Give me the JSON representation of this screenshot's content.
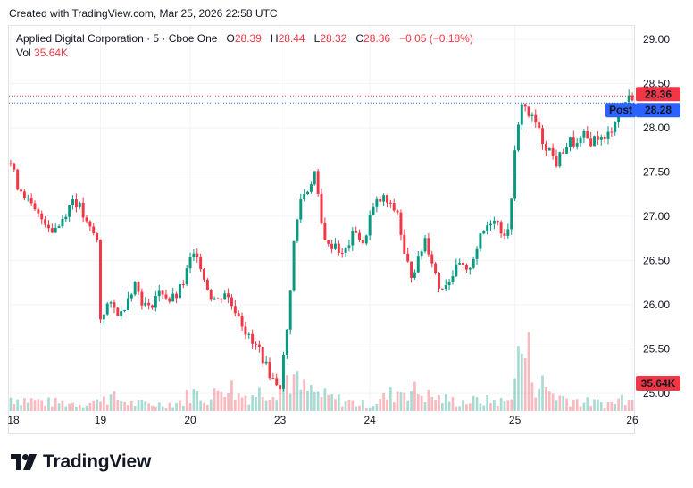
{
  "header": {
    "created": "Created with TradingView.com, Mar 25, 2026 22:58 UTC"
  },
  "legend": {
    "symbol": "Applied Digital Corporation · 5 · Cboe One",
    "o_label": "O",
    "o_value": "28.39",
    "h_label": "H",
    "h_value": "28.44",
    "l_label": "L",
    "l_value": "28.32",
    "c_label": "C",
    "c_value": "28.36",
    "change": "−0.05 (−0.18%)",
    "vol_label": "Vol",
    "vol_value": "35.64K"
  },
  "footer": {
    "brand": "TradingView"
  },
  "colors": {
    "up": "#089981",
    "down": "#f23645",
    "post": "#2962ff",
    "grid": "#f0f3fa"
  },
  "chart_data": {
    "type": "candlestick",
    "ylim": [
      24.8,
      29.15
    ],
    "y_ticks": [
      25.0,
      25.5,
      26.0,
      26.5,
      27.0,
      27.5,
      28.0,
      28.5,
      29.0
    ],
    "y_tick_labels": [
      "25.00",
      "25.50",
      "26.00",
      "26.50",
      "27.00",
      "27.50",
      "28.00",
      "28.50",
      "29.00"
    ],
    "x_tick_labels": [
      "18",
      "19",
      "20",
      "23",
      "24",
      "25",
      "26"
    ],
    "last_price_label": "28.36",
    "post_label": "Post",
    "post_price_label": "28.28",
    "volume_label": "35.64K",
    "price_path": [
      [
        0,
        27.6
      ],
      [
        2,
        27.35
      ],
      [
        4,
        27.25
      ],
      [
        6,
        27.1
      ],
      [
        8,
        27.0
      ],
      [
        10,
        26.95
      ],
      [
        12,
        26.85
      ],
      [
        14,
        26.9
      ],
      [
        16,
        27.05
      ],
      [
        18,
        27.2
      ],
      [
        20,
        27.1
      ],
      [
        22,
        26.9
      ],
      [
        24,
        26.8
      ],
      [
        25,
        26.72
      ],
      [
        26,
        25.85
      ],
      [
        28,
        26.0
      ],
      [
        30,
        25.95
      ],
      [
        32,
        25.9
      ],
      [
        34,
        26.1
      ],
      [
        36,
        26.25
      ],
      [
        38,
        26.05
      ],
      [
        40,
        25.95
      ],
      [
        42,
        26.1
      ],
      [
        44,
        26.15
      ],
      [
        46,
        26.05
      ],
      [
        48,
        26.1
      ],
      [
        50,
        26.25
      ],
      [
        52,
        26.5
      ],
      [
        54,
        26.6
      ],
      [
        56,
        26.3
      ],
      [
        58,
        26.1
      ],
      [
        60,
        26.05
      ],
      [
        62,
        26.15
      ],
      [
        64,
        26.0
      ],
      [
        66,
        25.9
      ],
      [
        68,
        25.7
      ],
      [
        70,
        25.55
      ],
      [
        72,
        25.5
      ],
      [
        74,
        25.3
      ],
      [
        76,
        25.15
      ],
      [
        78,
        25.1
      ],
      [
        80,
        25.7
      ],
      [
        82,
        26.7
      ],
      [
        84,
        27.2
      ],
      [
        86,
        27.3
      ],
      [
        88,
        27.5
      ],
      [
        90,
        26.9
      ],
      [
        92,
        26.65
      ],
      [
        94,
        26.7
      ],
      [
        96,
        26.55
      ],
      [
        98,
        26.7
      ],
      [
        100,
        26.85
      ],
      [
        102,
        26.65
      ],
      [
        104,
        27.0
      ],
      [
        106,
        27.15
      ],
      [
        108,
        27.2
      ],
      [
        110,
        27.1
      ],
      [
        112,
        27.05
      ],
      [
        114,
        26.55
      ],
      [
        116,
        26.35
      ],
      [
        118,
        26.5
      ],
      [
        120,
        26.75
      ],
      [
        122,
        26.5
      ],
      [
        124,
        26.2
      ],
      [
        126,
        26.25
      ],
      [
        128,
        26.35
      ],
      [
        130,
        26.45
      ],
      [
        132,
        26.35
      ],
      [
        134,
        26.55
      ],
      [
        136,
        26.75
      ],
      [
        138,
        26.9
      ],
      [
        140,
        27.0
      ],
      [
        142,
        26.85
      ],
      [
        144,
        26.8
      ],
      [
        146,
        27.7
      ],
      [
        148,
        28.3
      ],
      [
        150,
        28.15
      ],
      [
        152,
        28.05
      ],
      [
        154,
        27.85
      ],
      [
        156,
        27.75
      ],
      [
        158,
        27.6
      ],
      [
        160,
        27.75
      ],
      [
        162,
        27.85
      ],
      [
        164,
        27.8
      ],
      [
        166,
        27.9
      ],
      [
        168,
        27.85
      ],
      [
        170,
        27.9
      ],
      [
        172,
        27.85
      ],
      [
        174,
        28.0
      ],
      [
        176,
        28.2
      ],
      [
        178,
        28.3
      ],
      [
        180,
        28.36
      ]
    ],
    "volume_path": [
      [
        0,
        0.18
      ],
      [
        10,
        0.12
      ],
      [
        20,
        0.1
      ],
      [
        25,
        0.12
      ],
      [
        26,
        0.22
      ],
      [
        35,
        0.1
      ],
      [
        45,
        0.09
      ],
      [
        50,
        0.13
      ],
      [
        52,
        0.25
      ],
      [
        58,
        0.15
      ],
      [
        62,
        0.4
      ],
      [
        66,
        0.2
      ],
      [
        70,
        0.22
      ],
      [
        76,
        0.3
      ],
      [
        78,
        0.35
      ],
      [
        80,
        0.45
      ],
      [
        82,
        0.4
      ],
      [
        84,
        0.3
      ],
      [
        90,
        0.2
      ],
      [
        100,
        0.1
      ],
      [
        104,
        0.08
      ],
      [
        114,
        0.3
      ],
      [
        118,
        0.25
      ],
      [
        122,
        0.18
      ],
      [
        130,
        0.12
      ],
      [
        136,
        0.14
      ],
      [
        144,
        0.12
      ],
      [
        146,
        0.5
      ],
      [
        148,
        0.8
      ],
      [
        150,
        0.7
      ],
      [
        152,
        0.4
      ],
      [
        158,
        0.2
      ],
      [
        166,
        0.12
      ],
      [
        174,
        0.1
      ],
      [
        178,
        0.2
      ],
      [
        180,
        0.32
      ]
    ]
  }
}
